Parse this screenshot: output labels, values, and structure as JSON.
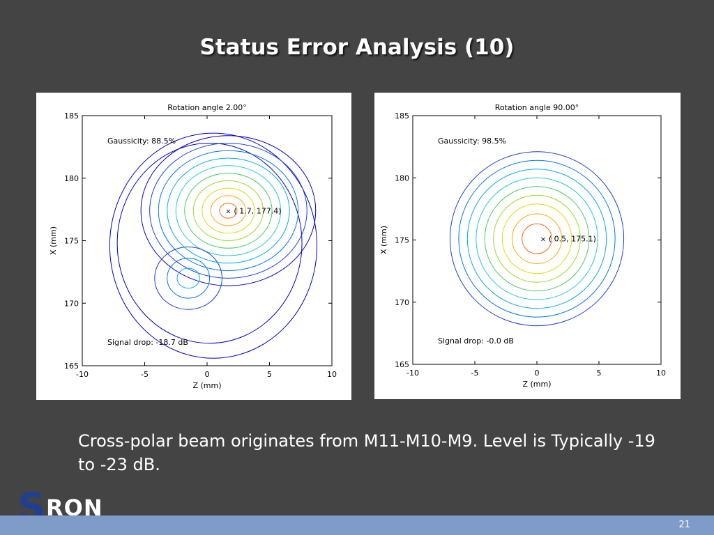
{
  "slide": {
    "title": "Status Error Analysis (10)",
    "caption": "Cross-polar beam originates from M11-M10-M9. Level is Typically -19 to -23 dB.",
    "page_number": "21",
    "logo_text": {
      "first": "S",
      "rest": "RON"
    }
  },
  "contour_colors": [
    "#0000cc",
    "#1a3fd9",
    "#0077ee",
    "#00aaee",
    "#22cccc",
    "#44cc66",
    "#99dd22",
    "#dddd00",
    "#ffaa00",
    "#ff6600",
    "#ee2200",
    "#aa0000"
  ],
  "chart_data": [
    {
      "type": "contour",
      "title": "Rotation angle  2.00°",
      "xlabel": "Z (mm)",
      "ylabel": "X (mm)",
      "xlim": [
        -10,
        10
      ],
      "ylim": [
        165,
        185
      ],
      "xticks": [
        -10,
        -5,
        0,
        5,
        10
      ],
      "yticks": [
        165,
        170,
        175,
        180,
        185
      ],
      "grid": false,
      "annotations": {
        "gaussicity": "Gaussicity: 88.5%",
        "signal_drop": "Signal drop: -18.7 dB",
        "peak_label": "( 1.7, 177.4)"
      },
      "peak": [
        1.7,
        177.4
      ],
      "lobes": [
        {
          "name": "main",
          "center": [
            1.7,
            177.4
          ],
          "radii_x": [
            0.7,
            1.4,
            2.1,
            2.8,
            3.5,
            4.2,
            4.9,
            5.6,
            6.3,
            7.0
          ],
          "radii_y": [
            0.6,
            1.2,
            1.8,
            2.4,
            3.0,
            3.6,
            4.2,
            4.8,
            5.4,
            6.0
          ]
        },
        {
          "name": "secondary",
          "center": [
            -1.5,
            172.0
          ],
          "radii_x": [
            0.9,
            1.7,
            2.7
          ],
          "radii_y": [
            0.8,
            1.6,
            2.5
          ]
        }
      ],
      "outer_contours": [
        {
          "center": [
            0.2,
            174.8
          ],
          "rx": 7.4,
          "ry": 8.0
        },
        {
          "center": [
            0.5,
            174.6
          ],
          "rx": 8.3,
          "ry": 9.0
        }
      ]
    },
    {
      "type": "contour",
      "title": "Rotation angle 90.00°",
      "xlabel": "Z (mm)",
      "ylabel": "X (mm)",
      "xlim": [
        -10,
        10
      ],
      "ylim": [
        165,
        185
      ],
      "xticks": [
        -10,
        -5,
        0,
        5,
        10
      ],
      "yticks": [
        165,
        170,
        175,
        180,
        185
      ],
      "grid": false,
      "annotations": {
        "gaussicity": "Gaussicity: 98.5%",
        "signal_drop": "Signal drop: -0.0 dB",
        "peak_label": "( 0.5, 175.1)"
      },
      "peak": [
        0.5,
        175.1
      ],
      "lobes": [
        {
          "name": "main",
          "center": [
            0.0,
            175.1
          ],
          "radii_x": [
            1.2,
            2.0,
            2.8,
            3.5,
            4.2,
            4.9,
            5.6,
            6.3,
            7.0
          ],
          "radii_y": [
            1.2,
            2.0,
            2.8,
            3.5,
            4.2,
            4.9,
            5.6,
            6.3,
            7.0
          ]
        }
      ],
      "outer_contours": []
    }
  ]
}
